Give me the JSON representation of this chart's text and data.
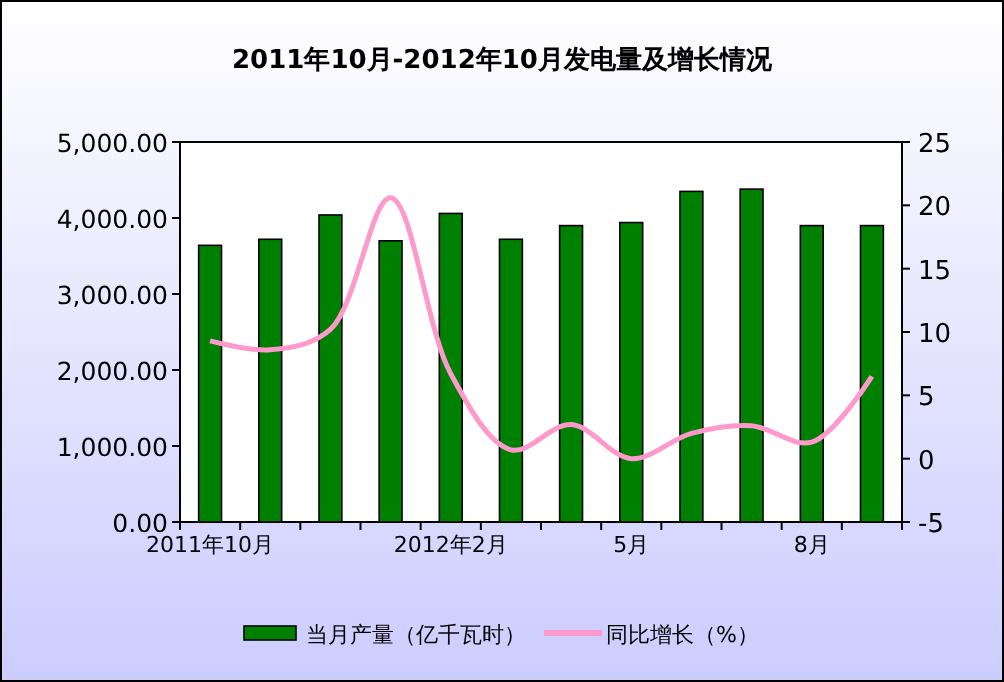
{
  "chart_data": {
    "type": "bar",
    "title": "2011年10月-2012年10月发电量及增长情况",
    "categories": [
      "2011年10月",
      null,
      null,
      null,
      "2012年2月",
      null,
      null,
      "5月",
      null,
      null,
      "8月",
      null
    ],
    "series": [
      {
        "name": "当月产量（亿千瓦时）",
        "color": "#008000",
        "values": [
          3640,
          3720,
          4040,
          3700,
          4060,
          3720,
          3900,
          3940,
          4350,
          4380,
          3900,
          3900
        ]
      },
      {
        "name": "同比增长（%）",
        "type": "line",
        "axis": "y2",
        "color": "#ff99cc",
        "marker": "none",
        "values": [
          9.3,
          8.6,
          10.2,
          20.6,
          6.7,
          0.7,
          2.7,
          0.0,
          2.0,
          2.6,
          1.3,
          6.5
        ]
      }
    ],
    "ylim": [
      0,
      5000
    ],
    "yticks": [
      {
        "value": 0,
        "label": "0.00"
      },
      {
        "value": 1000,
        "label": "1,000.00"
      },
      {
        "value": 2000,
        "label": "2,000.00"
      },
      {
        "value": 3000,
        "label": "3,000.00"
      },
      {
        "value": 4000,
        "label": "4,000.00"
      },
      {
        "value": 5000,
        "label": "5,000.00"
      }
    ],
    "y2lim": [
      -5,
      25
    ],
    "y2ticks": [
      -5,
      0,
      5,
      10,
      15,
      20,
      25
    ],
    "grid": false,
    "legend": "bottom"
  }
}
